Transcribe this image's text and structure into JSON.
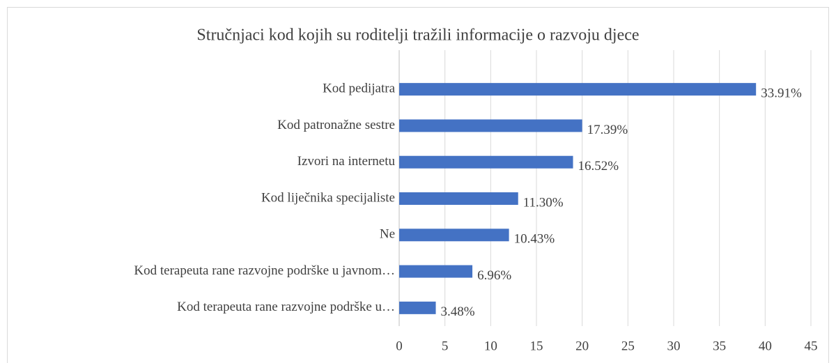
{
  "chart_data": {
    "type": "bar",
    "orientation": "horizontal",
    "title": "Stručnjaci kod kojih su roditelji tražili informacije o razvoju djece",
    "categories": [
      "Kod pedijatra",
      "Kod patronažne sestre",
      "Izvori na internetu",
      "Kod liječnika specijaliste",
      "Ne",
      "Kod terapeuta rane razvojne podrške u javnom…",
      "Kod terapeuta rane razvojne podrške u…"
    ],
    "values": [
      39,
      20,
      19,
      13,
      12,
      8,
      4
    ],
    "value_labels": [
      "33.91%",
      "17.39%",
      "16.52%",
      "11.30%",
      "10.43%",
      "6.96%",
      "3.48%"
    ],
    "color": "#4472c4",
    "xlim": [
      0,
      45
    ],
    "xticks": [
      0,
      5,
      10,
      15,
      20,
      25,
      30,
      35,
      40,
      45
    ],
    "grid": true
  }
}
